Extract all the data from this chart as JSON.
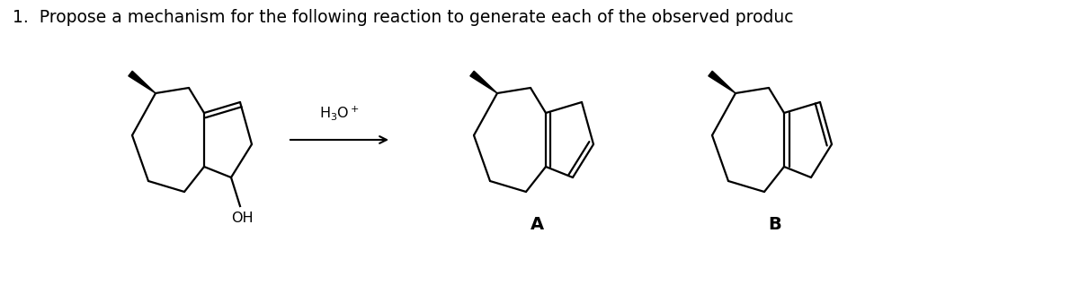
{
  "background_color": "#ffffff",
  "title_text": "1.  Propose a mechanism for the following reaction to generate each of the observed produc",
  "title_fontsize": 13.5,
  "lw": 1.6,
  "label_A": "A",
  "label_B": "B"
}
